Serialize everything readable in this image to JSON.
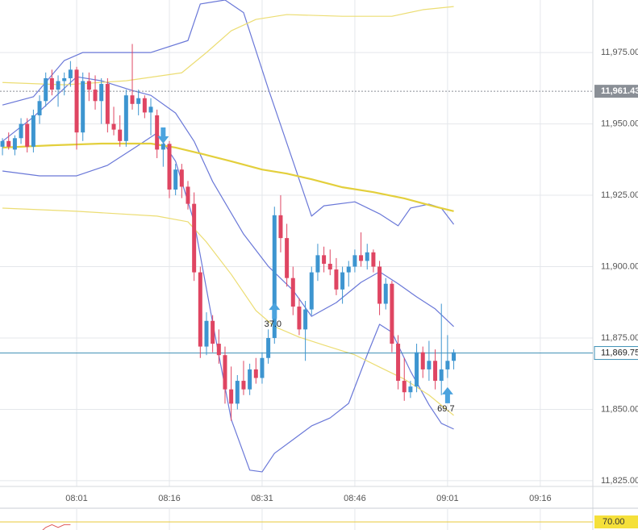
{
  "chart_data": {
    "type": "candlestick",
    "xlim": [
      -0.4,
      95.5
    ],
    "ylim": [
      11823,
      11993.4
    ],
    "xticks": [
      {
        "value": 12,
        "label": "08:01"
      },
      {
        "value": 27,
        "label": "08:16"
      },
      {
        "value": 42,
        "label": "08:31"
      },
      {
        "value": 57,
        "label": "08:46"
      },
      {
        "value": 72,
        "label": "09:01"
      },
      {
        "value": 87,
        "label": "09:16"
      }
    ],
    "yticks": [
      {
        "value": 11825,
        "label": "11,825.00"
      },
      {
        "value": 11850,
        "label": "11,850.00"
      },
      {
        "value": 11875,
        "label": "11,875.00"
      },
      {
        "value": 11900,
        "label": "11,900.00"
      },
      {
        "value": 11925,
        "label": "11,925.00"
      },
      {
        "value": 11950,
        "label": "11,950.00"
      },
      {
        "value": 11975,
        "label": "11,975.00"
      }
    ],
    "grid": true,
    "up_color": "#3d95d0",
    "down_color": "#df4562",
    "candles": {
      "open": [
        11942,
        11944,
        11941,
        11945,
        11950,
        11942,
        11953,
        11958,
        11966,
        11962,
        11965,
        11966,
        11969,
        11947,
        11965,
        11962,
        11958,
        11964,
        11950,
        11948,
        11944,
        11960,
        11957,
        11959,
        11954,
        11953,
        11941,
        11943,
        11927,
        11934,
        11928,
        11922,
        11898,
        11872,
        11881,
        11873,
        11869,
        11857,
        11852,
        11860,
        11857,
        11864,
        11861,
        11868,
        11875,
        11918,
        11910,
        11896,
        11886,
        11878,
        11885,
        11898,
        11904,
        11901,
        11899,
        11892,
        11898,
        11900,
        11904,
        11902,
        11905,
        11900,
        11887,
        11894,
        11873,
        11860,
        11856,
        11858,
        11870,
        11864,
        11867,
        11860,
        11864,
        11867
      ],
      "high": [
        11945,
        11947,
        11946,
        11952,
        11952,
        11955,
        11960,
        11968,
        11969,
        11967,
        11968,
        11972,
        11970,
        11968,
        11968,
        11967,
        11966,
        11966,
        11956,
        11953,
        11962,
        11978,
        11962,
        11960,
        11959,
        11955,
        11946,
        11944,
        11936,
        11936,
        11930,
        11926,
        11900,
        11884,
        11883,
        11878,
        11872,
        11865,
        11862,
        11867,
        11866,
        11868,
        11870,
        11878,
        11921,
        11925,
        11915,
        11900,
        11889,
        11888,
        11900,
        11908,
        11907,
        11906,
        11903,
        11900,
        11902,
        11906,
        11912,
        11908,
        11906,
        11902,
        11896,
        11895,
        11876,
        11868,
        11860,
        11873,
        11872,
        11874,
        11871,
        11887,
        11876,
        11871
      ],
      "low": [
        11939,
        11941,
        11939,
        11943,
        11940,
        11940,
        11950,
        11956,
        11960,
        11956,
        11960,
        11963,
        11941,
        11944,
        11958,
        11955,
        11950,
        11947,
        11946,
        11942,
        11942,
        11955,
        11953,
        11952,
        11946,
        11938,
        11935,
        11924,
        11925,
        11924,
        11920,
        11895,
        11868,
        11869,
        11870,
        11866,
        11852,
        11846,
        11850,
        11855,
        11855,
        11859,
        11859,
        11866,
        11873,
        11905,
        11893,
        11883,
        11876,
        11867,
        11883,
        11895,
        11898,
        11897,
        11890,
        11887,
        11893,
        11898,
        11900,
        11899,
        11898,
        11883,
        11885,
        11870,
        11857,
        11853,
        11854,
        11856,
        11861,
        11860,
        11857,
        11855,
        11861,
        11864
      ],
      "close": [
        11944,
        11942,
        11945,
        11950,
        11942,
        11953,
        11958,
        11966,
        11962,
        11965,
        11966,
        11969,
        11947,
        11965,
        11962,
        11958,
        11964,
        11950,
        11948,
        11944,
        11960,
        11957,
        11959,
        11954,
        11956,
        11941,
        11943,
        11927,
        11934,
        11928,
        11922,
        11898,
        11872,
        11881,
        11873,
        11869,
        11857,
        11852,
        11860,
        11857,
        11864,
        11861,
        11868,
        11875,
        11918,
        11910,
        11896,
        11886,
        11878,
        11885,
        11898,
        11904,
        11901,
        11899,
        11892,
        11898,
        11900,
        11904,
        11902,
        11905,
        11900,
        11887,
        11894,
        11873,
        11860,
        11856,
        11858,
        11870,
        11864,
        11867,
        11860,
        11864,
        11867,
        11870
      ]
    },
    "series": [
      {
        "color": "#6a78d8",
        "width": 1.2,
        "x": [
          0,
          5,
          10,
          13,
          20,
          24,
          30,
          32,
          36,
          39,
          43,
          47,
          50,
          52,
          57,
          61,
          64,
          66,
          69,
          71,
          73
        ],
        "values": [
          11956.6,
          11959.5,
          11972.2,
          11975,
          11975,
          11975,
          11979.2,
          11992,
          11993.4,
          11989,
          11962.3,
          11936.9,
          11917.7,
          11921.3,
          11922.7,
          11918.5,
          11914.3,
          11920.5,
          11921.9,
          11920.5,
          11914.8
        ]
      },
      {
        "color": "#6a78d8",
        "width": 1.2,
        "x": [
          0,
          5,
          12,
          16,
          21,
          24,
          28,
          31,
          34,
          39,
          43,
          47,
          50,
          54,
          58,
          61,
          64,
          67,
          70,
          73
        ],
        "values": [
          11943.9,
          11952.4,
          11966.5,
          11965.1,
          11961.7,
          11960,
          11953.8,
          11943.9,
          11929.8,
          11911.4,
          11900.1,
          11891.7,
          11882.6,
          11887.4,
          11894.5,
          11898.2,
          11894,
          11889.4,
          11885.2,
          11879
        ]
      },
      {
        "color": "#6a78d8",
        "width": 1.2,
        "x": [
          0,
          6,
          12,
          17,
          22,
          25,
          28,
          31,
          34,
          37,
          40,
          42,
          44,
          47,
          50,
          53,
          56,
          59,
          61,
          63,
          66,
          69,
          71,
          73
        ],
        "values": [
          11933.5,
          11931.8,
          11931.8,
          11935.5,
          11942.5,
          11946.8,
          11936.9,
          11915.7,
          11880.4,
          11846.5,
          11828.7,
          11828.1,
          11834.6,
          11839.4,
          11844.2,
          11847,
          11852.1,
          11869.1,
          11879.8,
          11877,
          11863.4,
          11851.6,
          11845.1,
          11843.1
        ]
      },
      {
        "color": "#e3cf3c",
        "width": 2.2,
        "x": [
          0,
          8,
          16,
          24,
          28,
          33,
          37,
          42,
          46,
          50,
          55,
          60,
          65,
          70,
          73
        ],
        "values": [
          11941.7,
          11942.5,
          11943.1,
          11943.1,
          11941.7,
          11939.1,
          11936.9,
          11934,
          11932.6,
          11930.6,
          11927.8,
          11926.1,
          11923.9,
          11921,
          11919.4
        ]
      },
      {
        "color": "#ecdd73",
        "width": 1.2,
        "x": [
          0,
          10,
          20,
          29,
          33,
          37,
          41,
          46,
          55,
          63,
          68,
          73
        ],
        "values": [
          11964.5,
          11963.7,
          11965.1,
          11967.9,
          11975,
          11982.6,
          11986.6,
          11988.3,
          11987.7,
          11987.7,
          11990,
          11991.1
        ]
      },
      {
        "color": "#ecdd73",
        "width": 1.2,
        "x": [
          0,
          12,
          25,
          30,
          33,
          37,
          41,
          44,
          48,
          52,
          57,
          61,
          65,
          69,
          73
        ],
        "values": [
          11920.5,
          11919.4,
          11917.7,
          11915.7,
          11908.6,
          11897.3,
          11884.6,
          11879,
          11875.3,
          11872.5,
          11869.1,
          11864.8,
          11860.6,
          11855,
          11847.9
        ]
      }
    ],
    "price_lines": [
      {
        "value": 11961.43,
        "label": "11,961.43",
        "color": "#8a8f96",
        "dashed": true
      },
      {
        "value": 11869.75,
        "label": "11,869.75",
        "color": "#3d8fb5",
        "dashed": false
      }
    ],
    "signals": [
      {
        "x": 26,
        "y": 11943.1,
        "direction": "down"
      },
      {
        "x": 44,
        "y": 11887.4,
        "direction": "up",
        "label": "37.0"
      },
      {
        "x": 72,
        "y": 11857.8,
        "direction": "up",
        "label": "69.7"
      }
    ],
    "lower_panel": {
      "ylim": [
        65,
        75
      ],
      "level": {
        "value": 70,
        "label": "70.00"
      },
      "x": [
        6,
        7,
        8,
        9,
        10,
        11
      ],
      "values": [
        66,
        68,
        69,
        68,
        69,
        69
      ],
      "color": "#e05a5a"
    }
  }
}
